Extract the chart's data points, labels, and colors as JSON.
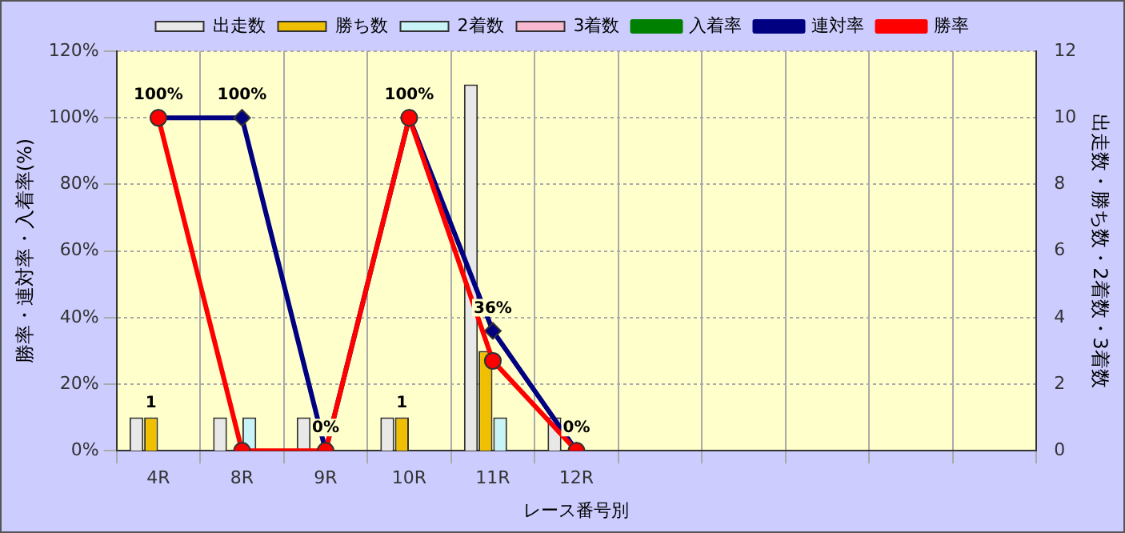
{
  "chart_data": {
    "type": "bar",
    "xlabel": "レース番号別",
    "ylabel": "勝率・連対率・入着率(%)",
    "y2label": "出走数・勝ち数・2着数・3着数",
    "categories": [
      "4R",
      "8R",
      "9R",
      "10R",
      "11R",
      "12R",
      null,
      null,
      null,
      null,
      null
    ],
    "series": [
      {
        "name": "出走数",
        "axis": "y2",
        "color": "#e8e8e8",
        "values": [
          1,
          1,
          1,
          1,
          11,
          1,
          null,
          null,
          null,
          null,
          null
        ]
      },
      {
        "name": "勝ち数",
        "axis": "y2",
        "color": "#f0c000",
        "values": [
          1,
          0,
          0,
          1,
          3,
          0,
          null,
          null,
          null,
          null,
          null
        ],
        "value_labels": [
          "1",
          null,
          null,
          "1",
          null,
          null,
          null,
          null,
          null,
          null,
          null
        ]
      },
      {
        "name": "2着数",
        "axis": "y2",
        "color": "#c8f4f8",
        "values": [
          0,
          1,
          0,
          0,
          1,
          0,
          null,
          null,
          null,
          null,
          null
        ]
      },
      {
        "name": "3着数",
        "axis": "y2",
        "color": "#f8b8d0",
        "values": [
          0,
          0,
          0,
          0,
          0,
          0,
          null,
          null,
          null,
          null,
          null
        ]
      },
      {
        "name": "入着率",
        "type": "line",
        "color": "#008000",
        "marker": "triangle",
        "values": [
          null,
          null,
          null,
          null,
          null,
          null,
          null,
          null,
          null,
          null,
          null
        ]
      },
      {
        "name": "連対率",
        "type": "line",
        "color": "#000080",
        "marker": "diamond",
        "values": [
          100,
          100,
          0,
          100,
          36,
          0,
          null,
          null,
          null,
          null,
          null
        ],
        "value_labels": [
          "100%",
          "100%",
          "0%",
          "100%",
          "36%",
          "0%",
          null,
          null,
          null,
          null,
          null
        ]
      },
      {
        "name": "勝率",
        "type": "line",
        "color": "#ff0000",
        "marker": "circle",
        "values": [
          100,
          0,
          0,
          100,
          27,
          0,
          null,
          null,
          null,
          null,
          null
        ]
      }
    ],
    "ylim": [
      0,
      120
    ],
    "yticks": [
      {
        "value": 0,
        "label": "0%"
      },
      {
        "value": 20,
        "label": "20%"
      },
      {
        "value": 40,
        "label": "40%"
      },
      {
        "value": 60,
        "label": "60%"
      },
      {
        "value": 80,
        "label": "80%"
      },
      {
        "value": 100,
        "label": "100%"
      },
      {
        "value": 120,
        "label": "120%"
      }
    ],
    "y2lim": [
      0,
      12
    ],
    "y2ticks": [
      0,
      2,
      4,
      6,
      8,
      10,
      12
    ],
    "grid": true,
    "legend": "top",
    "line_style": "solid"
  }
}
